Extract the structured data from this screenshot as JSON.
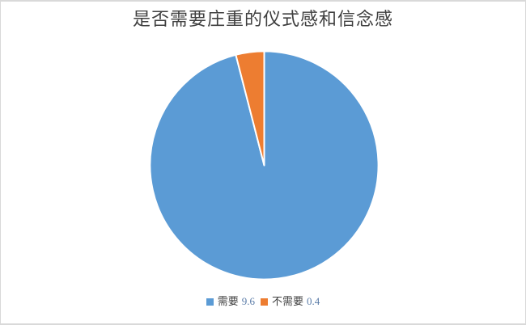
{
  "frame": {
    "background": "#ffffff",
    "border_color": "#d9d9d9"
  },
  "chart_data": {
    "type": "pie",
    "title": "是否需要庄重的仪式感和信念感",
    "categories": [
      "需要",
      "不需要"
    ],
    "values": [
      9.6,
      0.4
    ],
    "slice_colors": [
      "#5B9BD5",
      "#ED7D31"
    ],
    "start_angle_deg": 0,
    "direction": "clockwise",
    "legend_position": "bottom",
    "legend": [
      {
        "label": "需要",
        "value": "9.6",
        "swatch": "#5B9BD5"
      },
      {
        "label": "不需要",
        "value": "0.4",
        "swatch": "#ED7D31"
      }
    ],
    "colors": {
      "title_text": "#3f3f3f",
      "legend_label_text": "#404040",
      "legend_value_text": "#5b7ca8",
      "slice_stroke": "#ffffff"
    }
  }
}
